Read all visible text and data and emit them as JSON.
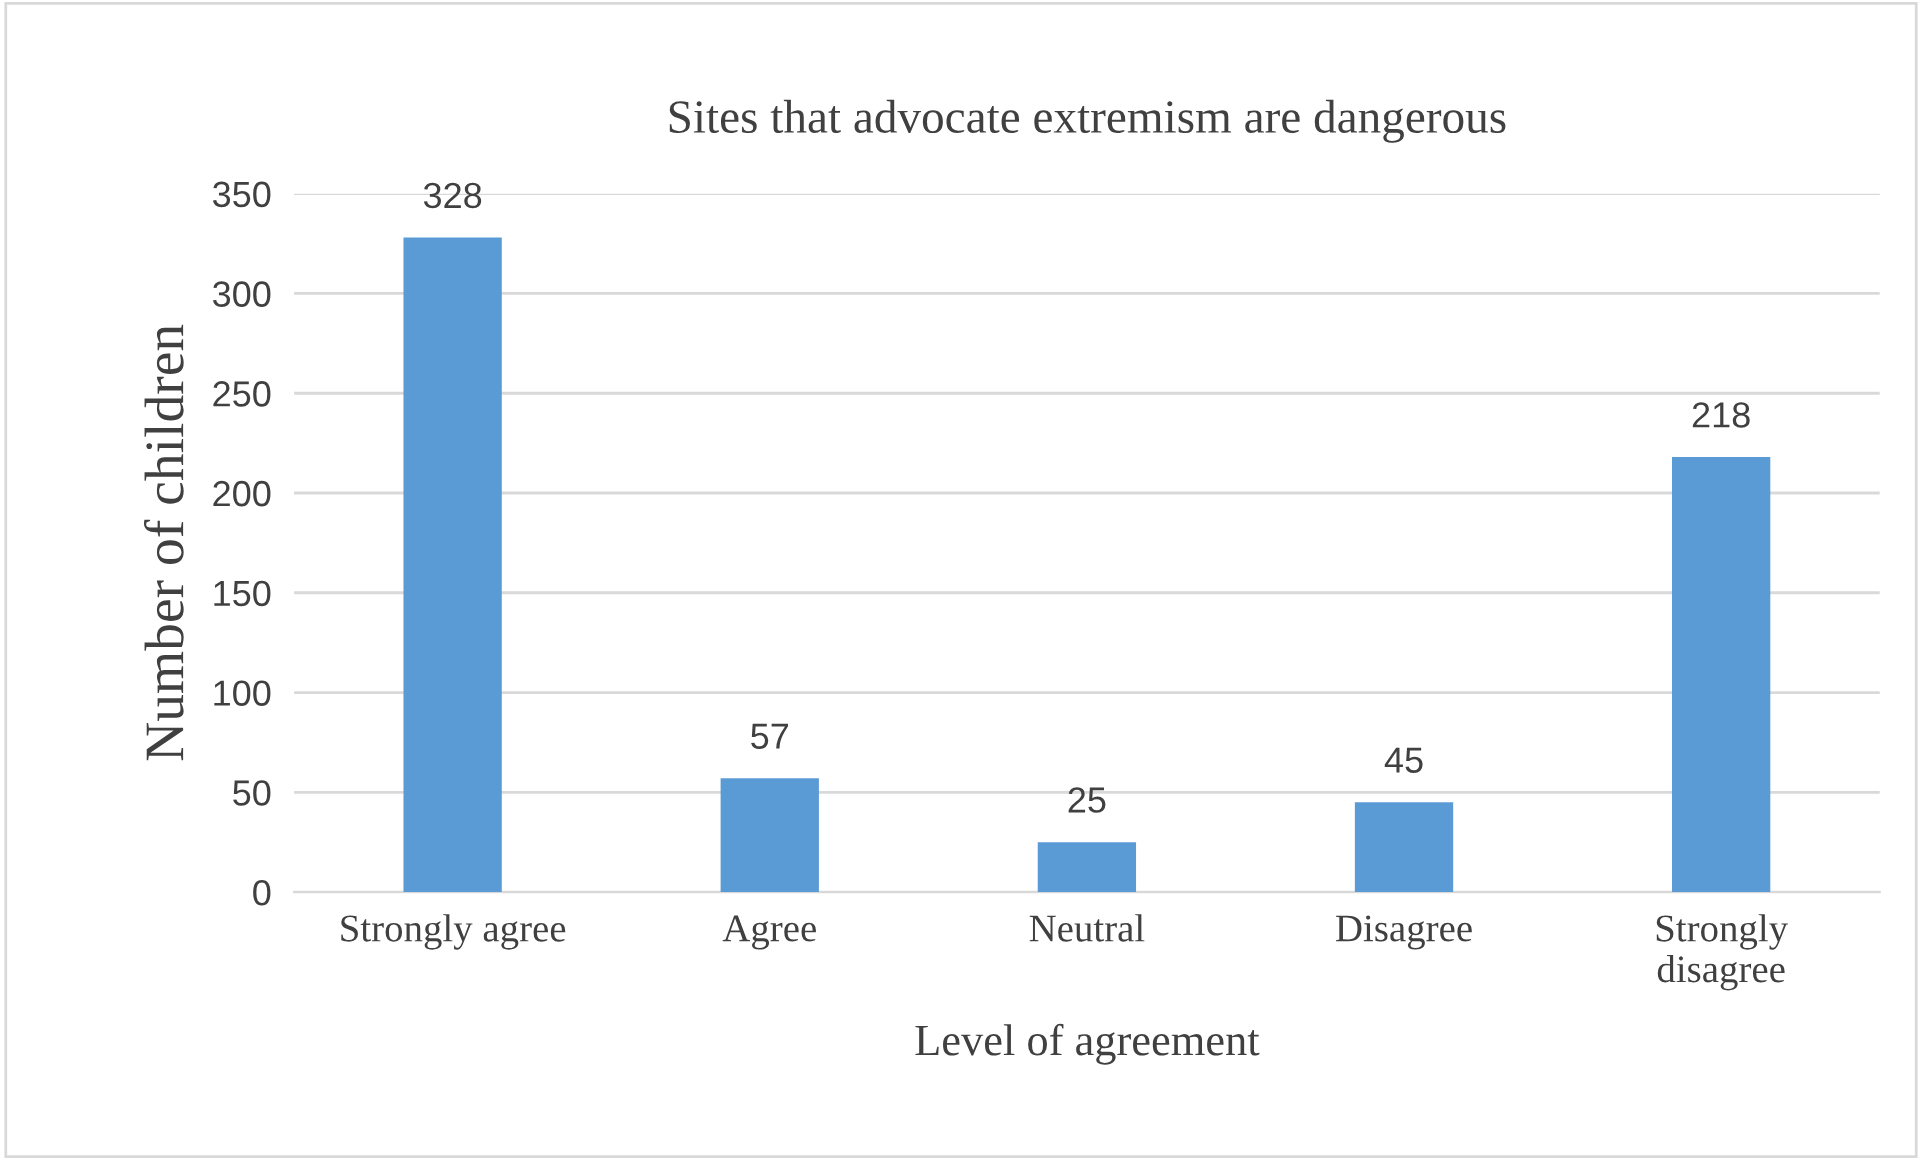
{
  "chart_data": {
    "type": "bar",
    "title": "Sites that advocate extremism are dangerous",
    "xlabel": "Level of agreement",
    "ylabel": "Number of children",
    "categories": [
      "Strongly agree",
      "Agree",
      "Neutral",
      "Disagree",
      "Strongly\ndisagree"
    ],
    "values": [
      328,
      57,
      25,
      45,
      218
    ],
    "color": "#5b9bd5",
    "ylim": [
      0,
      350
    ],
    "yticks": [
      0,
      50,
      100,
      150,
      200,
      250,
      300,
      350
    ],
    "grid": "y",
    "data_labels": true
  }
}
